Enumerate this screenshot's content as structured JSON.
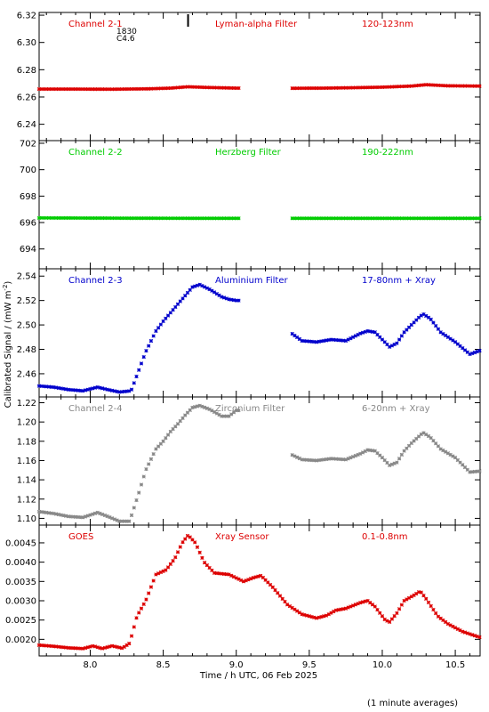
{
  "figure": {
    "ylabel": "Calibrated Signal / (mW m",
    "ylabel_sup": "-2",
    "ylabel_end": ")",
    "xlabel": "Time / h UTC, 06 Feb 2025",
    "footnote": "(1 minute averages)"
  },
  "chart_data": [
    {
      "type": "scatter",
      "title": "Channel 2-1",
      "filter": "Lyman-alpha Filter",
      "band": "120-123nm",
      "color": "#dd0000",
      "xlim": [
        7.65,
        10.67
      ],
      "ylim": [
        6.228,
        6.322
      ],
      "yticks": [
        "6.24",
        "6.26",
        "6.28",
        "6.30",
        "6.32"
      ],
      "ytick_values": [
        6.24,
        6.26,
        6.28,
        6.3,
        6.32
      ],
      "gap": [
        9.02,
        9.38
      ],
      "annotation": {
        "text1": "1830",
        "text2": "C4.6",
        "x": 8.67
      },
      "x": [
        7.65,
        7.9,
        8.15,
        8.4,
        8.55,
        8.67,
        8.8,
        9.0,
        9.02,
        9.38,
        9.6,
        9.8,
        10.0,
        10.2,
        10.3,
        10.45,
        10.67
      ],
      "y": [
        6.2658,
        6.2658,
        6.2657,
        6.266,
        6.2665,
        6.2675,
        6.267,
        6.2665,
        6.2665,
        6.2664,
        6.2665,
        6.2668,
        6.2672,
        6.268,
        6.269,
        6.2682,
        6.268
      ]
    },
    {
      "type": "scatter",
      "title": "Channel 2-2",
      "filter": "Herzberg Filter",
      "band": "190-222nm",
      "color": "#00cc00",
      "xlim": [
        7.65,
        10.67
      ],
      "ylim": [
        692.5,
        702.2
      ],
      "yticks": [
        "694",
        "696",
        "698",
        "700",
        "702"
      ],
      "ytick_values": [
        694,
        696,
        698,
        700,
        702
      ],
      "gap": [
        9.02,
        9.38
      ],
      "x": [
        7.65,
        8.2,
        8.7,
        9.02,
        9.38,
        10.0,
        10.67
      ],
      "y": [
        696.35,
        696.33,
        696.32,
        696.32,
        696.32,
        696.32,
        696.32
      ]
    },
    {
      "type": "scatter",
      "title": "Channel 2-3",
      "filter": "Aluminium Filter",
      "band": "17-80nm + Xray",
      "color": "#0000cc",
      "xlim": [
        7.65,
        10.67
      ],
      "ylim": [
        2.441,
        2.546
      ],
      "yticks": [
        "2.46",
        "2.48",
        "2.50",
        "2.52",
        "2.54"
      ],
      "ytick_values": [
        2.46,
        2.48,
        2.5,
        2.52,
        2.54
      ],
      "gap": [
        9.02,
        9.38
      ],
      "x": [
        7.65,
        7.75,
        7.85,
        7.95,
        8.05,
        8.12,
        8.2,
        8.28,
        8.33,
        8.38,
        8.45,
        8.5,
        8.55,
        8.6,
        8.65,
        8.7,
        8.75,
        8.82,
        8.9,
        8.95,
        9.0,
        9.02,
        9.38,
        9.45,
        9.55,
        9.65,
        9.75,
        9.85,
        9.9,
        9.95,
        10.0,
        10.05,
        10.1,
        10.15,
        10.2,
        10.25,
        10.28,
        10.33,
        10.4,
        10.5,
        10.6,
        10.67
      ],
      "y": [
        2.45,
        2.449,
        2.447,
        2.446,
        2.449,
        2.447,
        2.445,
        2.446,
        2.462,
        2.478,
        2.495,
        2.503,
        2.51,
        2.517,
        2.524,
        2.531,
        2.533,
        2.529,
        2.523,
        2.521,
        2.52,
        2.52,
        2.493,
        2.487,
        2.486,
        2.488,
        2.487,
        2.493,
        2.495,
        2.494,
        2.488,
        2.482,
        2.485,
        2.494,
        2.5,
        2.506,
        2.509,
        2.505,
        2.494,
        2.486,
        2.476,
        2.479
      ]
    },
    {
      "type": "scatter",
      "title": "Channel 2-4",
      "filter": "Zirconium Filter",
      "band": "6-20nm + Xray",
      "color": "#888888",
      "xlim": [
        7.65,
        10.67
      ],
      "ylim": [
        1.093,
        1.226
      ],
      "yticks": [
        "1.10",
        "1.12",
        "1.14",
        "1.16",
        "1.18",
        "1.20",
        "1.22"
      ],
      "ytick_values": [
        1.1,
        1.12,
        1.14,
        1.16,
        1.18,
        1.2,
        1.22
      ],
      "gap": [
        9.02,
        9.38
      ],
      "x": [
        7.65,
        7.75,
        7.85,
        7.95,
        8.05,
        8.12,
        8.2,
        8.27,
        8.33,
        8.38,
        8.45,
        8.5,
        8.55,
        8.6,
        8.65,
        8.7,
        8.75,
        8.82,
        8.9,
        8.95,
        9.0,
        9.02,
        9.38,
        9.45,
        9.55,
        9.65,
        9.75,
        9.85,
        9.9,
        9.95,
        10.0,
        10.05,
        10.1,
        10.15,
        10.2,
        10.25,
        10.28,
        10.33,
        10.4,
        10.5,
        10.6,
        10.67
      ],
      "y": [
        1.107,
        1.105,
        1.102,
        1.101,
        1.106,
        1.102,
        1.097,
        1.097,
        1.125,
        1.15,
        1.172,
        1.18,
        1.19,
        1.198,
        1.207,
        1.215,
        1.217,
        1.213,
        1.206,
        1.206,
        1.212,
        1.212,
        1.166,
        1.161,
        1.16,
        1.162,
        1.161,
        1.167,
        1.171,
        1.17,
        1.163,
        1.155,
        1.158,
        1.17,
        1.178,
        1.185,
        1.189,
        1.184,
        1.172,
        1.163,
        1.148,
        1.149
      ]
    },
    {
      "type": "scatter",
      "title": "GOES",
      "filter": "Xray Sensor",
      "band": "0.1-0.8nm",
      "color": "#dd0000",
      "xlim": [
        7.65,
        10.67
      ],
      "ylim": [
        0.00157,
        0.00496
      ],
      "yticks": [
        "0.0020",
        "0.0025",
        "0.0030",
        "0.0035",
        "0.0040",
        "0.0045"
      ],
      "ytick_values": [
        0.002,
        0.0025,
        0.003,
        0.0035,
        0.004,
        0.0045
      ],
      "gap": [],
      "x": [
        7.65,
        7.75,
        7.85,
        7.95,
        8.02,
        8.08,
        8.15,
        8.22,
        8.27,
        8.32,
        8.38,
        8.45,
        8.52,
        8.58,
        8.63,
        8.67,
        8.72,
        8.78,
        8.85,
        8.95,
        9.05,
        9.12,
        9.17,
        9.25,
        9.35,
        9.45,
        9.55,
        9.62,
        9.68,
        9.75,
        9.85,
        9.9,
        9.95,
        10.02,
        10.05,
        10.1,
        10.15,
        10.22,
        10.26,
        10.3,
        10.38,
        10.45,
        10.55,
        10.67
      ],
      "y": [
        0.00185,
        0.00182,
        0.00178,
        0.00176,
        0.00183,
        0.00176,
        0.00183,
        0.00177,
        0.0019,
        0.0026,
        0.003,
        0.00368,
        0.0038,
        0.0041,
        0.0045,
        0.0047,
        0.0045,
        0.004,
        0.00372,
        0.00368,
        0.0035,
        0.0036,
        0.00365,
        0.00335,
        0.0029,
        0.00265,
        0.00255,
        0.00262,
        0.00275,
        0.0028,
        0.00295,
        0.003,
        0.00285,
        0.0025,
        0.00245,
        0.00268,
        0.003,
        0.00315,
        0.00325,
        0.00305,
        0.0026,
        0.0024,
        0.0022,
        0.00205
      ]
    }
  ],
  "x_axis": {
    "ticks": [
      "8.0",
      "8.5",
      "9.0",
      "9.5",
      "10.0",
      "10.5"
    ],
    "tick_values": [
      8.0,
      8.5,
      9.0,
      9.5,
      10.0,
      10.5
    ]
  }
}
